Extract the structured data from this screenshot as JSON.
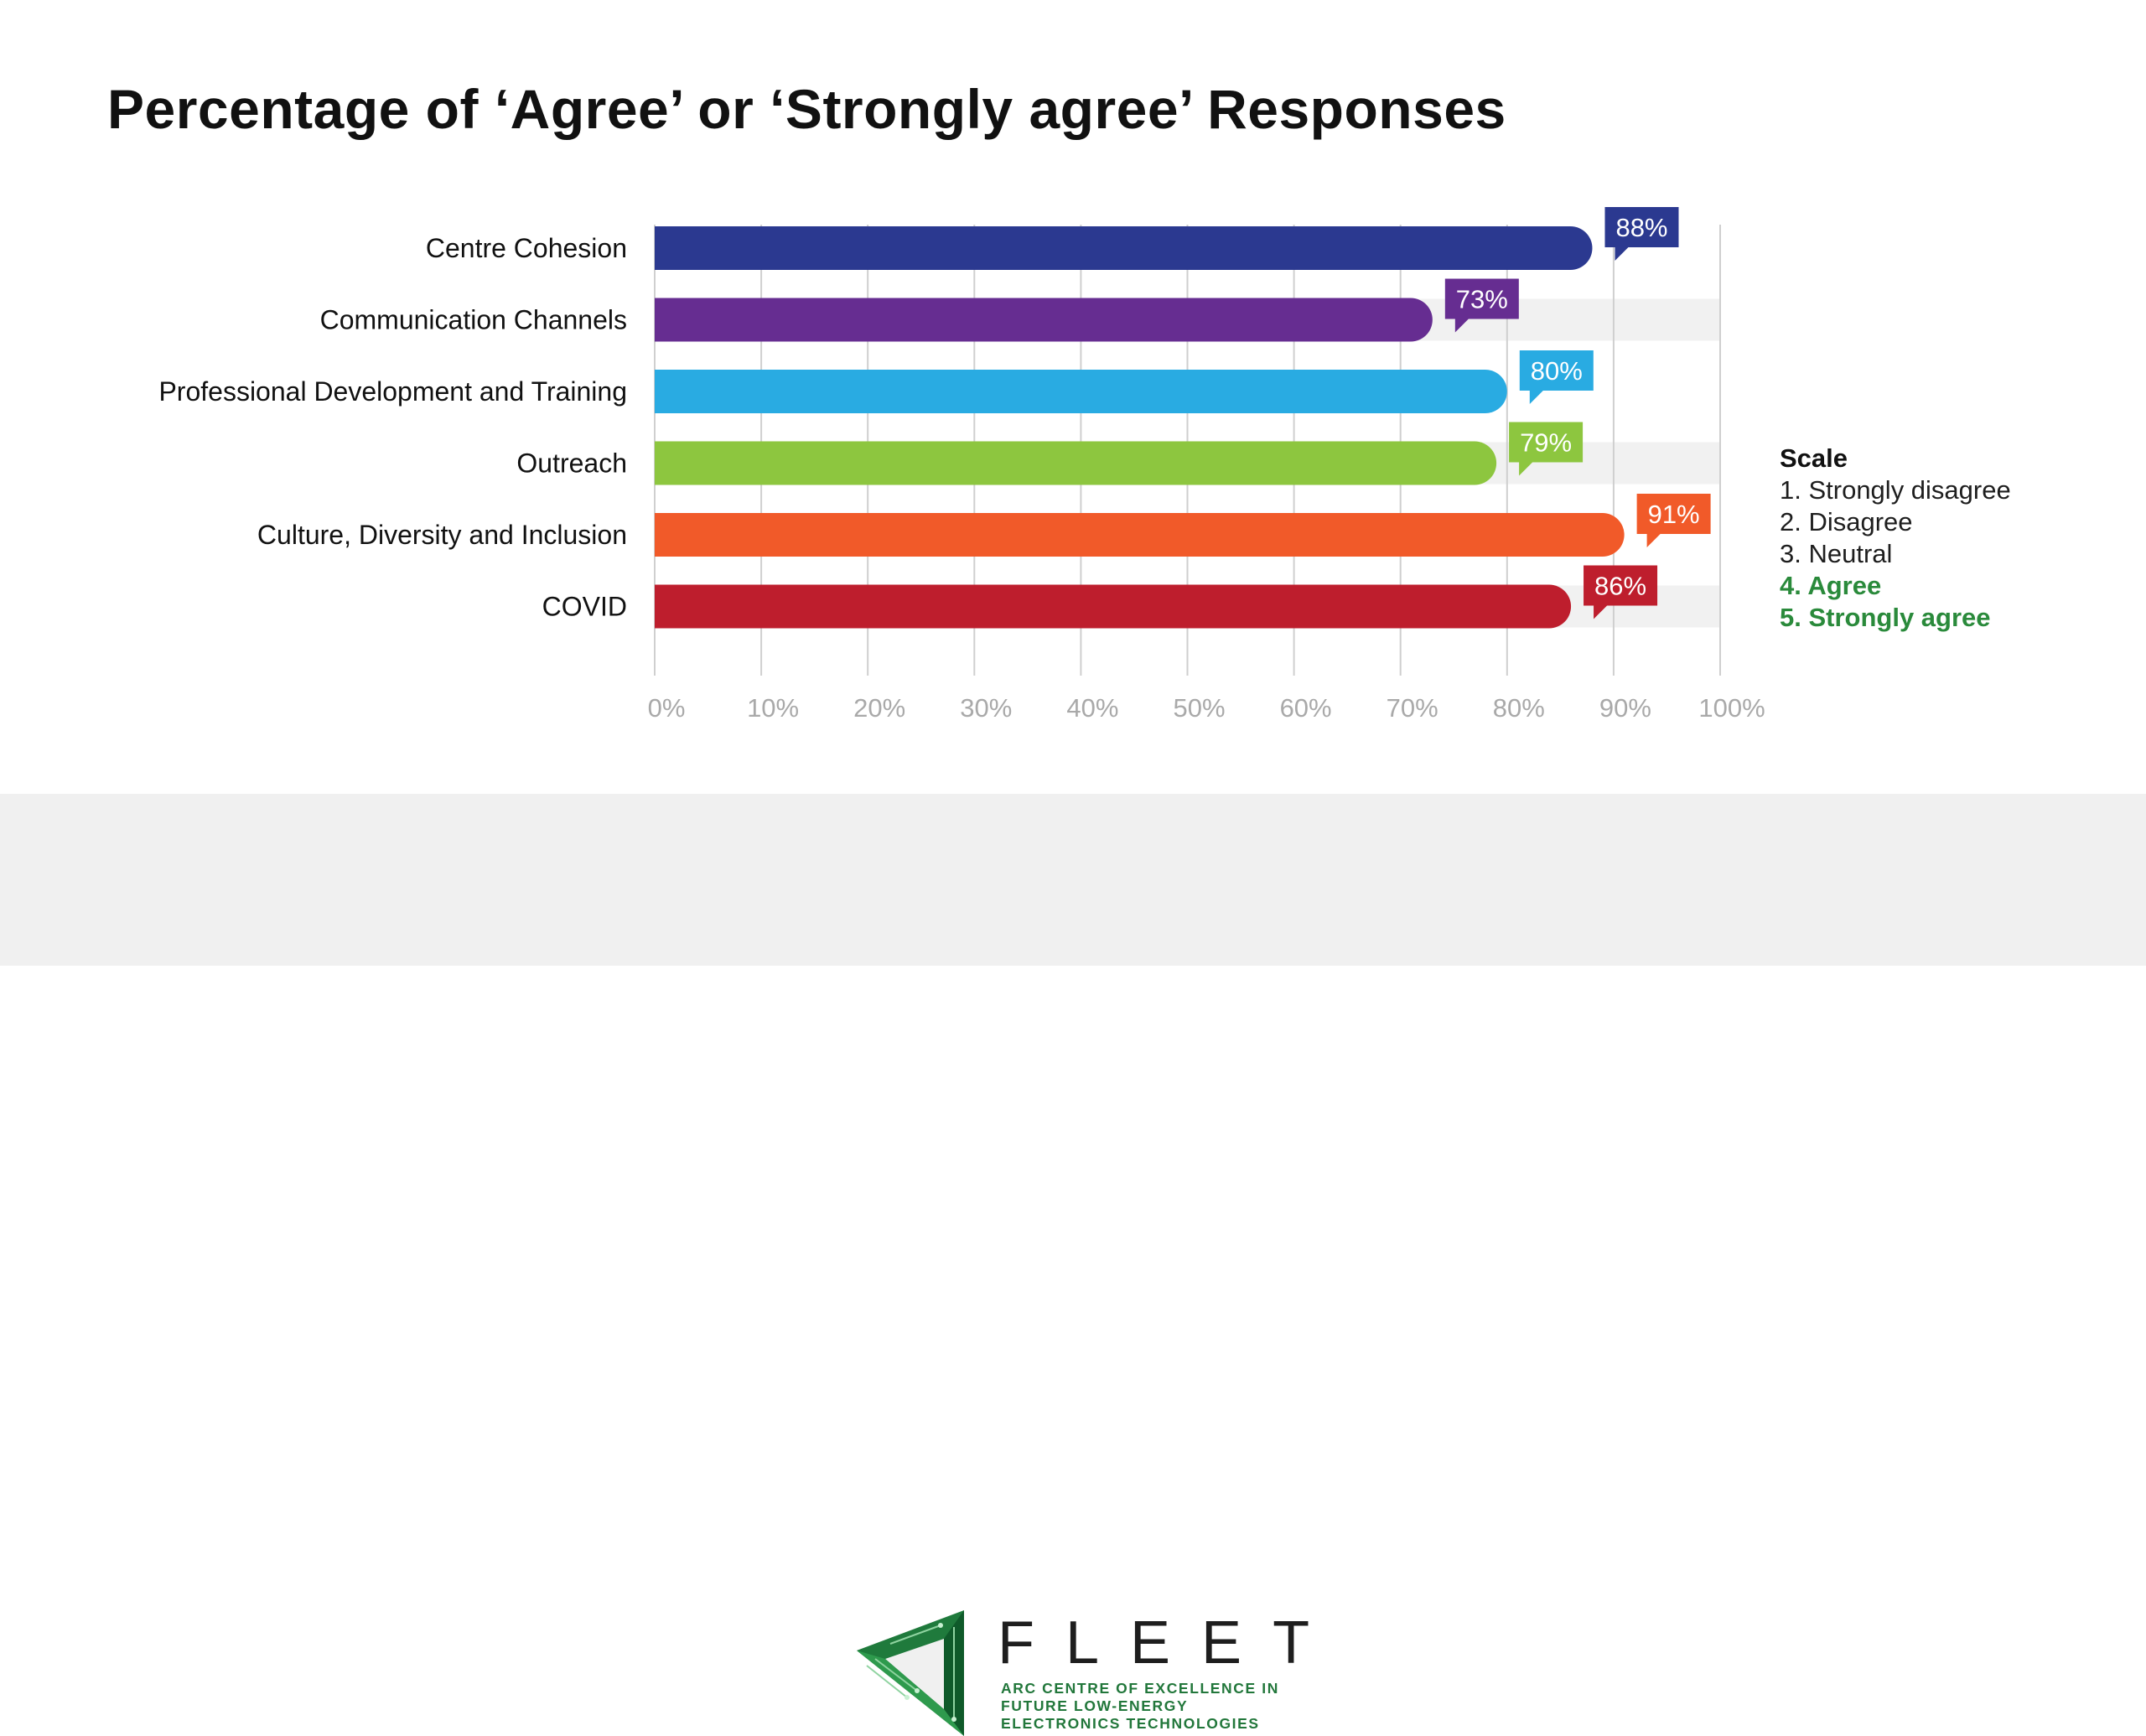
{
  "title": "Percentage of ‘Agree’ or ‘Strongly agree’ Responses",
  "chart_data": {
    "type": "bar",
    "orientation": "horizontal",
    "categories": [
      "Centre Cohesion",
      "Communication Channels",
      "Professional Development and Training",
      "Outreach",
      "Culture, Diversity and Inclusion",
      "COVID"
    ],
    "values": [
      88,
      73,
      80,
      79,
      91,
      86
    ],
    "data_labels": [
      "88%",
      "73%",
      "80%",
      "79%",
      "91%",
      "86%"
    ],
    "colors": [
      "#2b3990",
      "#662d91",
      "#29abe2",
      "#8dc63f",
      "#f15a29",
      "#be1e2d"
    ],
    "xlim": [
      0,
      100
    ],
    "x_ticks": [
      0,
      10,
      20,
      30,
      40,
      50,
      60,
      70,
      80,
      90,
      100
    ],
    "x_tick_labels": [
      "0%",
      "10%",
      "20%",
      "30%",
      "40%",
      "50%",
      "60%",
      "70%",
      "80%",
      "90%",
      "100%"
    ],
    "grid": true,
    "xlabel": "",
    "ylabel": ""
  },
  "scale": {
    "title": "Scale",
    "items": [
      {
        "label": "1.  Strongly disagree",
        "highlight": false
      },
      {
        "label": "2. Disagree",
        "highlight": false
      },
      {
        "label": "3. Neutral",
        "highlight": false
      },
      {
        "label": "4. Agree",
        "highlight": true
      },
      {
        "label": "5. Strongly agree",
        "highlight": true
      }
    ],
    "highlight_color": "#2a8a3b"
  },
  "footer": {
    "logo_name": "FLEET",
    "logo_icon": "fleet-triangle-logo-icon",
    "tagline": [
      "ARC CENTRE OF EXCELLENCE IN",
      "FUTURE LOW-ENERGY",
      "ELECTRONICS TECHNOLOGIES"
    ]
  }
}
